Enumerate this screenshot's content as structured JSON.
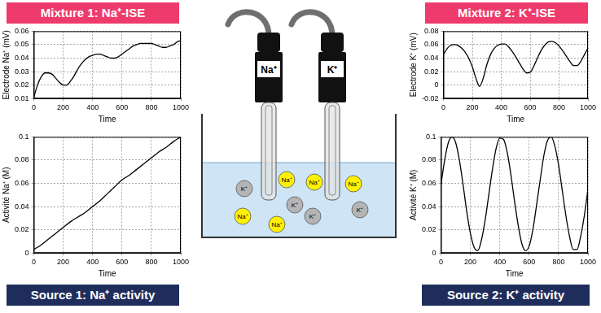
{
  "headers": {
    "mixture_1": "Mixture 1: Na⁺-ISE",
    "mixture_2": "Mixture 2: K⁺-ISE",
    "source_1": "Source 1: Na⁺ activity",
    "source_2": "Source 2: K⁺ activity"
  },
  "diagram": {
    "electrodes": [
      "Na⁺",
      "K⁺"
    ],
    "ions": [
      {
        "label": "K⁺",
        "color": "#b4b4b4"
      },
      {
        "label": "Na⁺",
        "color": "#fff200"
      },
      {
        "label": "K⁺",
        "color": "#b4b4b4"
      },
      {
        "label": "Na⁺",
        "color": "#fff200"
      },
      {
        "label": "K⁺",
        "color": "#b4b4b4"
      },
      {
        "label": "Na⁺",
        "color": "#fff200"
      },
      {
        "label": "Na⁺",
        "color": "#fff200"
      },
      {
        "label": "K⁺",
        "color": "#b4b4b4"
      },
      {
        "label": "Na⁺",
        "color": "#fff200"
      }
    ]
  },
  "chart_data": [
    {
      "type": "line",
      "x_label": "Time",
      "y_label": "Electrode Na⁺ (mV)",
      "color": "#000000",
      "grid": true,
      "x": [
        0,
        25,
        50,
        75,
        100,
        125,
        150,
        175,
        200,
        225,
        250,
        275,
        300,
        325,
        350,
        375,
        400,
        425,
        450,
        475,
        500,
        525,
        550,
        575,
        600,
        625,
        650,
        675,
        700,
        725,
        750,
        775,
        800,
        825,
        850,
        875,
        900,
        925,
        950,
        975,
        1000
      ],
      "values": [
        0.011,
        0.02,
        0.026,
        0.029,
        0.029,
        0.028,
        0.025,
        0.022,
        0.02,
        0.02,
        0.023,
        0.027,
        0.032,
        0.036,
        0.039,
        0.041,
        0.042,
        0.043,
        0.043,
        0.042,
        0.041,
        0.04,
        0.04,
        0.041,
        0.043,
        0.045,
        0.047,
        0.049,
        0.05,
        0.051,
        0.051,
        0.051,
        0.051,
        0.05,
        0.049,
        0.048,
        0.048,
        0.049,
        0.05,
        0.052,
        0.053
      ],
      "xlim": [
        0,
        1000
      ],
      "xticks": [
        0,
        200,
        400,
        600,
        800,
        1000
      ],
      "ylim": [
        0.01,
        0.06
      ],
      "yticks": [
        0.01,
        0.02,
        0.03,
        0.04,
        0.05,
        0.06
      ]
    },
    {
      "type": "line",
      "x_label": "Time",
      "y_label": "Activité Na⁺ (M)",
      "color": "#000000",
      "grid": true,
      "x": [
        0,
        50,
        100,
        150,
        200,
        250,
        300,
        350,
        400,
        450,
        500,
        550,
        600,
        650,
        700,
        750,
        800,
        850,
        900,
        950,
        1000
      ],
      "values": [
        0.003,
        0.007,
        0.012,
        0.017,
        0.022,
        0.027,
        0.031,
        0.035,
        0.04,
        0.045,
        0.051,
        0.057,
        0.063,
        0.067,
        0.072,
        0.077,
        0.082,
        0.087,
        0.091,
        0.096,
        0.1
      ],
      "xlim": [
        0,
        1000
      ],
      "xticks": [
        0,
        200,
        400,
        600,
        800,
        1000
      ],
      "ylim": [
        0,
        0.1
      ],
      "yticks": [
        0,
        0.02,
        0.04,
        0.06,
        0.08,
        0.1
      ]
    },
    {
      "type": "line",
      "x_label": "Time",
      "y_label": "Electrode K⁺ (mV)",
      "color": "#000000",
      "grid": true,
      "x": [
        0,
        25,
        50,
        75,
        100,
        125,
        150,
        175,
        200,
        225,
        250,
        275,
        300,
        325,
        350,
        375,
        400,
        425,
        450,
        475,
        500,
        525,
        550,
        575,
        600,
        625,
        650,
        675,
        700,
        725,
        750,
        775,
        800,
        825,
        850,
        875,
        900,
        925,
        950,
        975,
        1000
      ],
      "values": [
        0.045,
        0.054,
        0.059,
        0.06,
        0.059,
        0.055,
        0.049,
        0.04,
        0.027,
        0.01,
        -0.002,
        0.01,
        0.03,
        0.045,
        0.054,
        0.059,
        0.061,
        0.061,
        0.057,
        0.05,
        0.042,
        0.033,
        0.024,
        0.018,
        0.019,
        0.028,
        0.04,
        0.051,
        0.059,
        0.064,
        0.065,
        0.063,
        0.058,
        0.051,
        0.043,
        0.035,
        0.029,
        0.029,
        0.035,
        0.045,
        0.055
      ],
      "xlim": [
        0,
        1000
      ],
      "xticks": [
        0,
        200,
        400,
        600,
        800,
        1000
      ],
      "ylim": [
        -0.02,
        0.08
      ],
      "yticks": [
        -0.02,
        0,
        0.02,
        0.04,
        0.06,
        0.08
      ]
    },
    {
      "type": "line",
      "x_label": "Time",
      "y_label": "Activité K⁺ (M)",
      "color": "#000000",
      "grid": true,
      "x": [
        0,
        25,
        50,
        75,
        100,
        125,
        150,
        175,
        200,
        225,
        250,
        275,
        300,
        325,
        350,
        375,
        400,
        425,
        450,
        475,
        500,
        525,
        550,
        575,
        600,
        625,
        650,
        675,
        700,
        725,
        750,
        775,
        800,
        825,
        850,
        875,
        900,
        925,
        950,
        975,
        1000
      ],
      "values": [
        0.059,
        0.08,
        0.095,
        0.1,
        0.095,
        0.08,
        0.059,
        0.036,
        0.017,
        0.005,
        0.002,
        0.011,
        0.028,
        0.05,
        0.072,
        0.09,
        0.099,
        0.098,
        0.087,
        0.068,
        0.045,
        0.024,
        0.008,
        0.002,
        0.006,
        0.02,
        0.041,
        0.063,
        0.084,
        0.097,
        0.1,
        0.092,
        0.076,
        0.054,
        0.032,
        0.014,
        0.003,
        0.003,
        0.014,
        0.032,
        0.055
      ],
      "xlim": [
        0,
        1000
      ],
      "xticks": [
        0,
        200,
        400,
        600,
        800,
        1000
      ],
      "ylim": [
        0,
        0.1
      ],
      "yticks": [
        0,
        0.02,
        0.04,
        0.06,
        0.08,
        0.1
      ]
    }
  ]
}
